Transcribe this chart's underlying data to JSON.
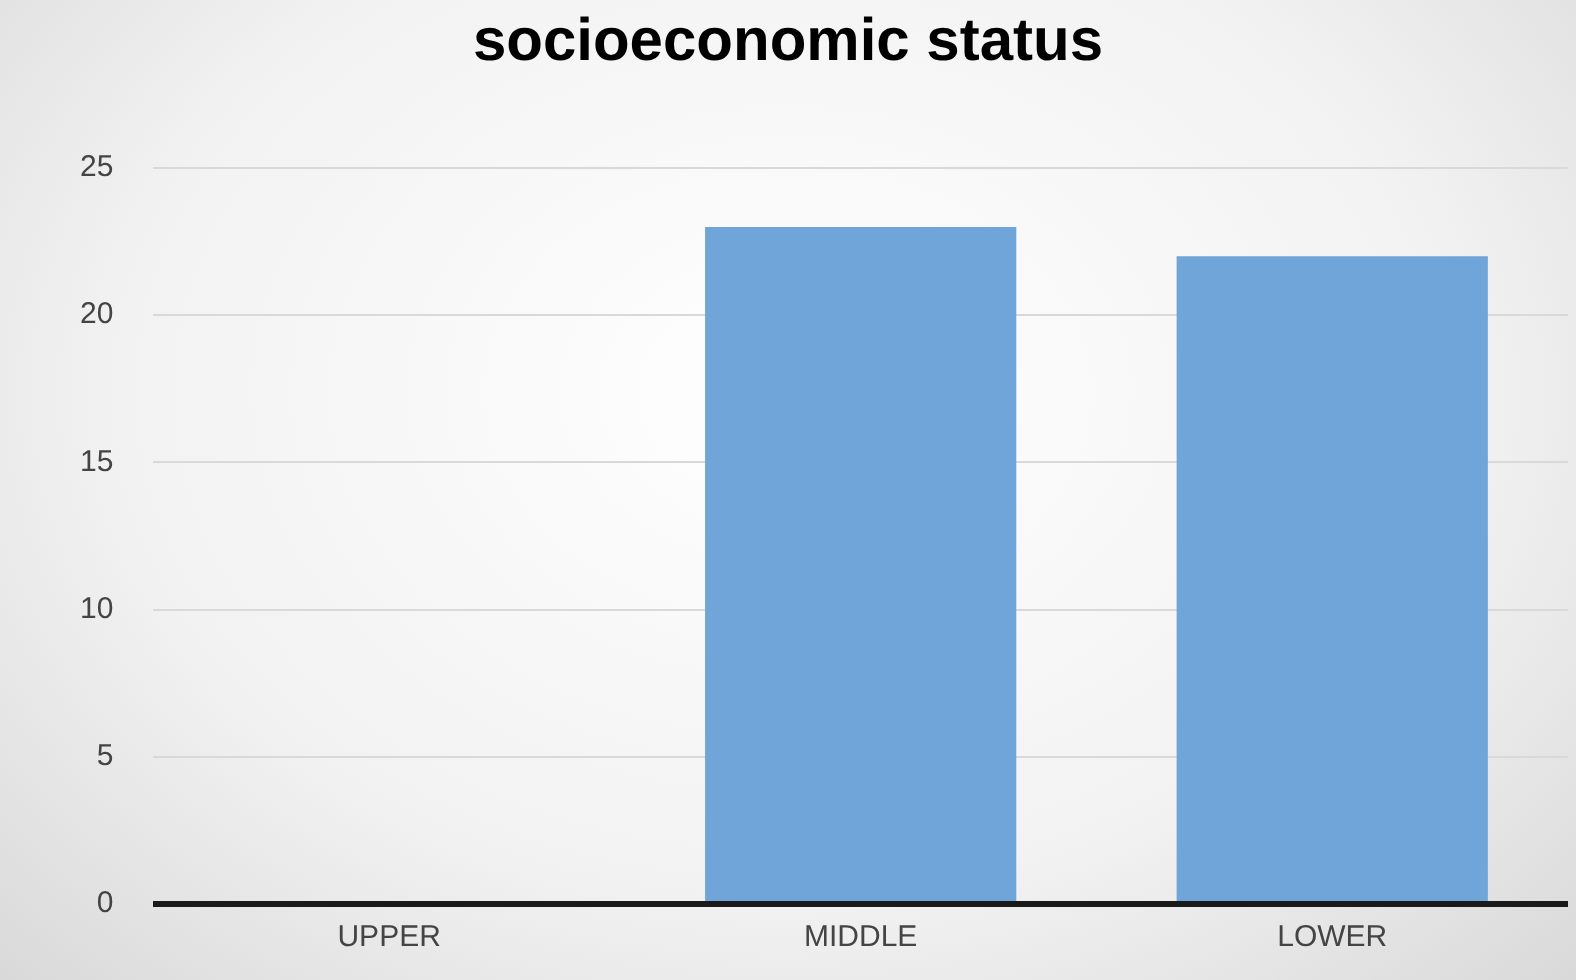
{
  "chart_data": {
    "type": "bar",
    "title": "socioeconomic status",
    "categories": [
      "UPPER",
      "MIDDLE",
      "LOWER"
    ],
    "values": [
      0,
      23,
      22
    ],
    "color": "#6fa5d8",
    "ylim": [
      0,
      25
    ],
    "yticks": [
      0,
      5,
      10,
      15,
      20,
      25
    ],
    "grid": "y"
  }
}
